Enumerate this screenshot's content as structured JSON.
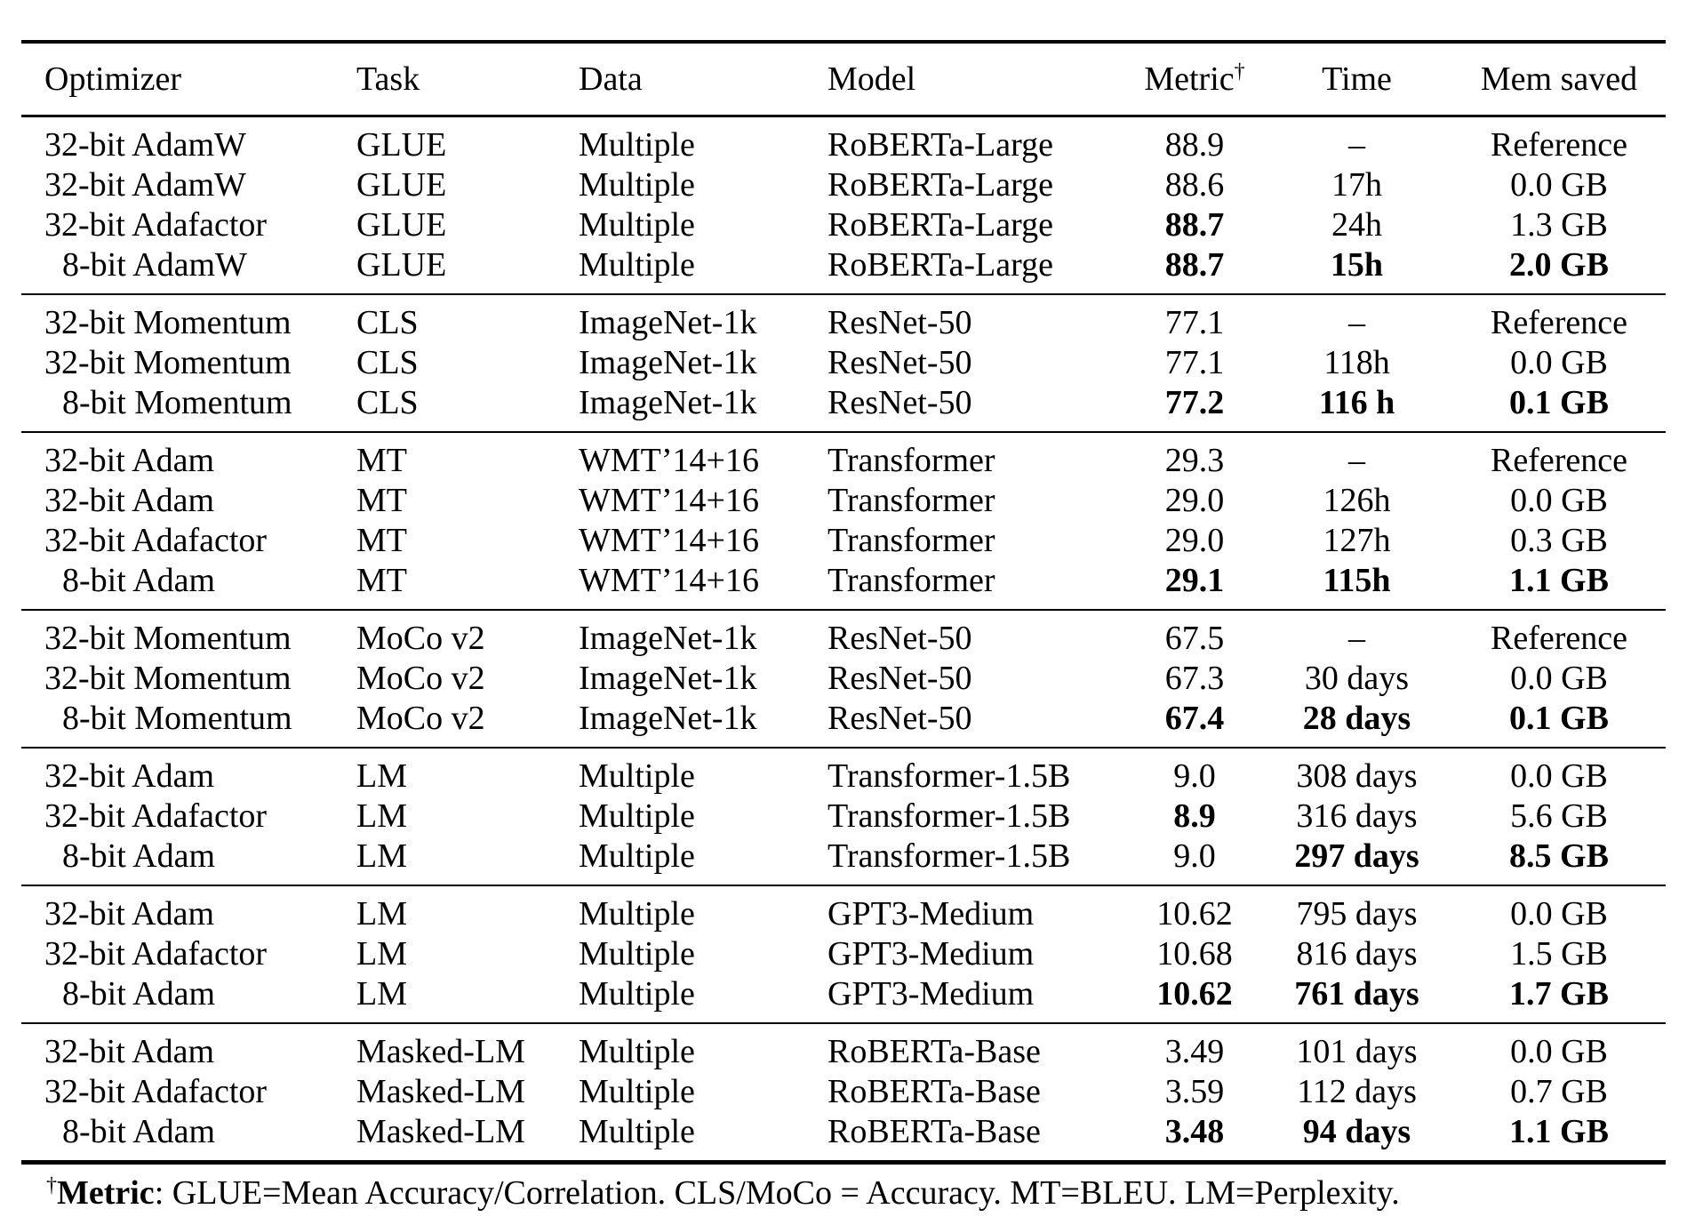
{
  "table": {
    "columns": [
      {
        "label": "Optimizer"
      },
      {
        "label": "Task"
      },
      {
        "label": "Data"
      },
      {
        "label": "Model"
      },
      {
        "label": "Metric",
        "sup": "†"
      },
      {
        "label": "Time"
      },
      {
        "label": "Mem saved"
      }
    ],
    "column_keys": [
      "optimizer",
      "task",
      "data",
      "model",
      "metric",
      "time",
      "mem-saved"
    ],
    "groups": [
      {
        "rows": [
          {
            "cells": [
              "32-bit AdamW",
              "GLUE",
              "Multiple",
              "RoBERTa-Large",
              "88.9",
              "–",
              "Reference"
            ],
            "bold": []
          },
          {
            "cells": [
              "32-bit AdamW",
              "GLUE",
              "Multiple",
              "RoBERTa-Large",
              "88.6",
              "17h",
              "0.0 GB"
            ],
            "bold": []
          },
          {
            "cells": [
              "32-bit Adafactor",
              "GLUE",
              "Multiple",
              "RoBERTa-Large",
              "88.7",
              "24h",
              "1.3 GB"
            ],
            "bold": [
              4
            ]
          },
          {
            "cells": [
              "8-bit AdamW",
              "GLUE",
              "Multiple",
              "RoBERTa-Large",
              "88.7",
              "15h",
              "2.0 GB"
            ],
            "bold": [
              4,
              5,
              6
            ]
          }
        ]
      },
      {
        "rows": [
          {
            "cells": [
              "32-bit Momentum",
              "CLS",
              "ImageNet-1k",
              "ResNet-50",
              "77.1",
              "–",
              "Reference"
            ],
            "bold": []
          },
          {
            "cells": [
              "32-bit Momentum",
              "CLS",
              "ImageNet-1k",
              "ResNet-50",
              "77.1",
              "118h",
              "0.0 GB"
            ],
            "bold": []
          },
          {
            "cells": [
              "8-bit Momentum",
              "CLS",
              "ImageNet-1k",
              "ResNet-50",
              "77.2",
              "116 h",
              "0.1 GB"
            ],
            "bold": [
              4,
              5,
              6
            ]
          }
        ]
      },
      {
        "rows": [
          {
            "cells": [
              "32-bit Adam",
              "MT",
              "WMT’14+16",
              "Transformer",
              "29.3",
              "–",
              "Reference"
            ],
            "bold": []
          },
          {
            "cells": [
              "32-bit Adam",
              "MT",
              "WMT’14+16",
              "Transformer",
              "29.0",
              "126h",
              "0.0 GB"
            ],
            "bold": []
          },
          {
            "cells": [
              "32-bit Adafactor",
              "MT",
              "WMT’14+16",
              "Transformer",
              "29.0",
              "127h",
              "0.3 GB"
            ],
            "bold": []
          },
          {
            "cells": [
              "8-bit Adam",
              "MT",
              "WMT’14+16",
              "Transformer",
              "29.1",
              "115h",
              "1.1 GB"
            ],
            "bold": [
              4,
              5,
              6
            ]
          }
        ]
      },
      {
        "rows": [
          {
            "cells": [
              "32-bit Momentum",
              "MoCo v2",
              "ImageNet-1k",
              "ResNet-50",
              "67.5",
              "–",
              "Reference"
            ],
            "bold": []
          },
          {
            "cells": [
              "32-bit Momentum",
              "MoCo v2",
              "ImageNet-1k",
              "ResNet-50",
              "67.3",
              "30 days",
              "0.0 GB"
            ],
            "bold": []
          },
          {
            "cells": [
              "8-bit Momentum",
              "MoCo v2",
              "ImageNet-1k",
              "ResNet-50",
              "67.4",
              "28 days",
              "0.1 GB"
            ],
            "bold": [
              4,
              5,
              6
            ]
          }
        ]
      },
      {
        "rows": [
          {
            "cells": [
              "32-bit Adam",
              "LM",
              "Multiple",
              "Transformer-1.5B",
              "9.0",
              "308 days",
              "0.0 GB"
            ],
            "bold": []
          },
          {
            "cells": [
              "32-bit Adafactor",
              "LM",
              "Multiple",
              "Transformer-1.5B",
              "8.9",
              "316 days",
              "5.6 GB"
            ],
            "bold": [
              4
            ]
          },
          {
            "cells": [
              "8-bit Adam",
              "LM",
              "Multiple",
              "Transformer-1.5B",
              "9.0",
              "297 days",
              "8.5 GB"
            ],
            "bold": [
              5,
              6
            ]
          }
        ]
      },
      {
        "rows": [
          {
            "cells": [
              "32-bit Adam",
              "LM",
              "Multiple",
              "GPT3-Medium",
              "10.62",
              "795 days",
              "0.0 GB"
            ],
            "bold": []
          },
          {
            "cells": [
              "32-bit Adafactor",
              "LM",
              "Multiple",
              "GPT3-Medium",
              "10.68",
              "816 days",
              "1.5 GB"
            ],
            "bold": []
          },
          {
            "cells": [
              "8-bit Adam",
              "LM",
              "Multiple",
              "GPT3-Medium",
              "10.62",
              "761 days",
              "1.7 GB"
            ],
            "bold": [
              4,
              5,
              6
            ]
          }
        ]
      },
      {
        "rows": [
          {
            "cells": [
              "32-bit Adam",
              "Masked-LM",
              "Multiple",
              "RoBERTa-Base",
              "3.49",
              "101 days",
              "0.0 GB"
            ],
            "bold": []
          },
          {
            "cells": [
              "32-bit Adafactor",
              "Masked-LM",
              "Multiple",
              "RoBERTa-Base",
              "3.59",
              "112 days",
              "0.7 GB"
            ],
            "bold": []
          },
          {
            "cells": [
              "8-bit Adam",
              "Masked-LM",
              "Multiple",
              "RoBERTa-Base",
              "3.48",
              "94 days",
              "1.1 GB"
            ],
            "bold": [
              4,
              5,
              6
            ]
          }
        ]
      }
    ]
  },
  "footnote": {
    "sup": "†",
    "bold": "Metric",
    "text": ": GLUE=Mean Accuracy/Correlation. CLS/MoCo = Accuracy. MT=BLEU. LM=Perplexity."
  },
  "colors": {
    "text": "#000000",
    "background": "#ffffff",
    "rule": "#000000"
  }
}
